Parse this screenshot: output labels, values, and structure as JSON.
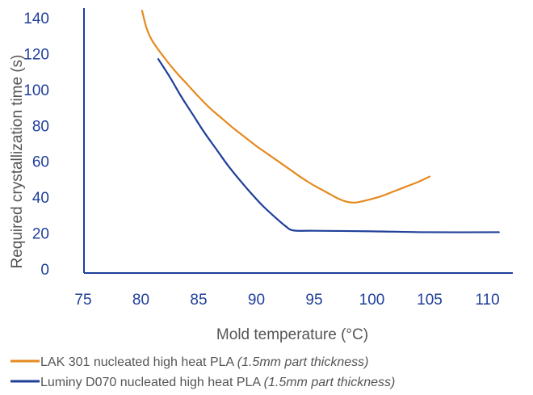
{
  "chart_data": {
    "type": "line",
    "xlabel": "Mold temperature (°C)",
    "ylabel": "Required crystallization time (s)",
    "xlim": [
      75,
      111
    ],
    "ylim": [
      0,
      140
    ],
    "x_ticks": [
      "75",
      "80",
      "85",
      "90",
      "95",
      "100",
      "105",
      "110"
    ],
    "y_ticks": [
      "0",
      "20",
      "40",
      "60",
      "80",
      "100",
      "120",
      "140"
    ],
    "grid": false,
    "legend_position": "bottom",
    "series": [
      {
        "name": "LAK 301 nucleated high heat PLA",
        "note": "(1.5mm part thickness)",
        "color": "#e58a1f",
        "points": [
          [
            80.1,
            144
          ],
          [
            80.5,
            134
          ],
          [
            81,
            127
          ],
          [
            82,
            118
          ],
          [
            83,
            110
          ],
          [
            84,
            103
          ],
          [
            85,
            96
          ],
          [
            86,
            89.5
          ],
          [
            87,
            84
          ],
          [
            88,
            78.5
          ],
          [
            89,
            73.5
          ],
          [
            90,
            68.5
          ],
          [
            91,
            64
          ],
          [
            92,
            59.5
          ],
          [
            93,
            55
          ],
          [
            94,
            50.5
          ],
          [
            95,
            46.5
          ],
          [
            96,
            43
          ],
          [
            97,
            39.5
          ],
          [
            97.8,
            37.5
          ],
          [
            98.5,
            37
          ],
          [
            99,
            37.5
          ],
          [
            100,
            39
          ],
          [
            101,
            41
          ],
          [
            102,
            43.5
          ],
          [
            103,
            46
          ],
          [
            104,
            48.5
          ],
          [
            105,
            51.5
          ]
        ]
      },
      {
        "name": "Luminy D070 nucleated high heat PLA",
        "note": "(1.5mm part thickness)",
        "color": "#1f3f99",
        "points": [
          [
            81.5,
            117
          ],
          [
            82.5,
            107
          ],
          [
            83.5,
            96
          ],
          [
            84.5,
            86
          ],
          [
            85.5,
            76
          ],
          [
            86.5,
            67
          ],
          [
            87.5,
            58
          ],
          [
            88.5,
            50
          ],
          [
            89.5,
            42.5
          ],
          [
            90.5,
            35.5
          ],
          [
            91.5,
            29.5
          ],
          [
            92.5,
            24
          ],
          [
            93.2,
            21.5
          ],
          [
            95,
            21.3
          ],
          [
            100,
            21
          ],
          [
            105,
            20.5
          ],
          [
            111,
            20.5
          ]
        ]
      }
    ]
  }
}
